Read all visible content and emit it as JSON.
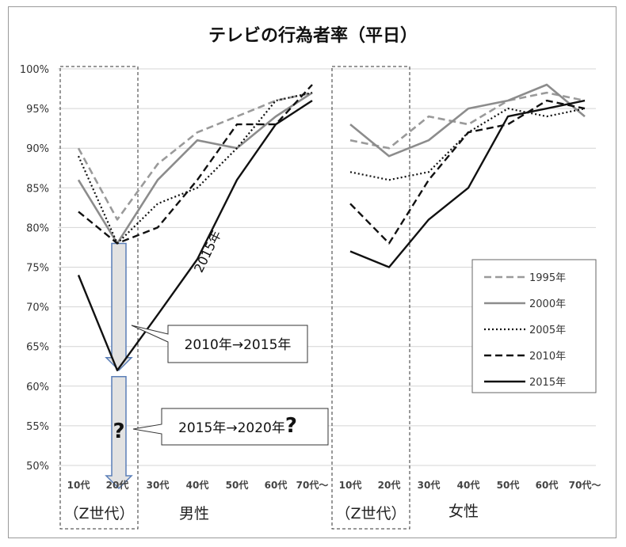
{
  "chart_data": {
    "type": "line",
    "title": "テレビの行為者率（平日）",
    "y_ticks": [
      "50%",
      "55%",
      "60%",
      "65%",
      "70%",
      "75%",
      "80%",
      "85%",
      "90%",
      "95%",
      "100%"
    ],
    "ylim": [
      50,
      100
    ],
    "categories": [
      "10代",
      "20代",
      "30代",
      "40代",
      "50代",
      "60代",
      "70代～"
    ],
    "groups": [
      {
        "label": "男性",
        "generation_label": "（Z世代）"
      },
      {
        "label": "女性",
        "generation_label": "（Z世代）"
      }
    ],
    "series": [
      {
        "name": "1995年",
        "style": "dash-gray",
        "color": "#999999",
        "male": [
          90,
          81,
          88,
          92,
          94,
          96,
          97
        ],
        "female": [
          91,
          90,
          94,
          93,
          96,
          97,
          96
        ]
      },
      {
        "name": "2000年",
        "style": "solid-gray",
        "color": "#8c8c8c",
        "male": [
          86,
          78,
          86,
          91,
          90,
          94,
          97
        ],
        "female": [
          93,
          89,
          91,
          95,
          96,
          98,
          94
        ]
      },
      {
        "name": "2005年",
        "style": "dotted",
        "color": "#111111",
        "male": [
          89,
          78,
          83,
          85,
          90,
          96,
          97
        ],
        "female": [
          87,
          86,
          87,
          92,
          95,
          94,
          95
        ]
      },
      {
        "name": "2010年",
        "style": "dash-black",
        "color": "#111111",
        "male": [
          82,
          78,
          80,
          86,
          93,
          93,
          98
        ],
        "female": [
          83,
          78,
          86,
          92,
          93,
          96,
          95
        ]
      },
      {
        "name": "2015年",
        "style": "solid-black",
        "color": "#111111",
        "male": [
          74,
          62,
          69,
          76,
          86,
          93,
          96
        ],
        "female": [
          77,
          75,
          81,
          85,
          94,
          95,
          96
        ]
      }
    ],
    "annotations": {
      "line_label": "2015年",
      "callout_1": "2010年→2015年",
      "callout_2": "2015年→2020年",
      "question_mark": "?",
      "callout_2_suffix": "?"
    },
    "arrow_from": 78,
    "arrow_mid": 62
  }
}
